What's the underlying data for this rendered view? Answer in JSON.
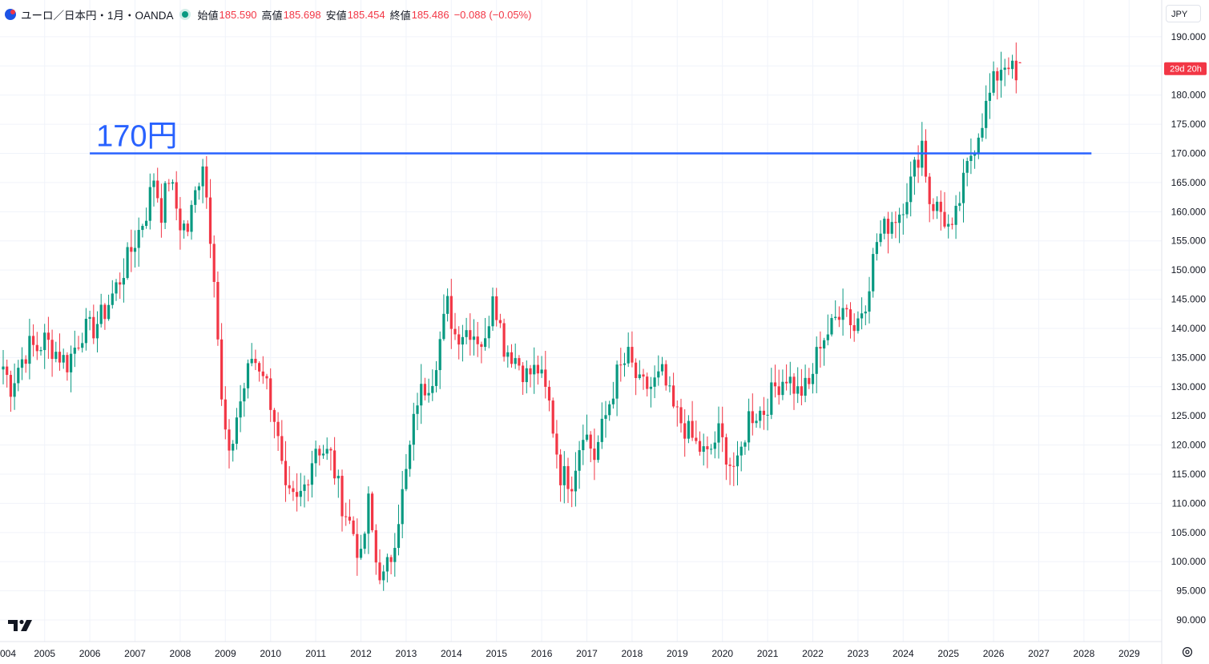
{
  "legend": {
    "symbol": "ユーロ／日本円・1月・OANDA",
    "open_label": "始値",
    "open": "185.590",
    "high_label": "高値",
    "high": "185.698",
    "low_label": "安値",
    "low": "185.454",
    "close_label": "終値",
    "close": "185.486",
    "change": "−0.088 (−0.05%)"
  },
  "currency_button": "JPY",
  "countdown_badge": "29d 20h",
  "colors": {
    "up": "#089981",
    "down": "#f23645",
    "hline": "#2962ff",
    "grid": "#f0f3fa",
    "text": "#131722"
  },
  "chart_data": {
    "type": "candlestick",
    "title": "ユーロ／日本円・1月・OANDA",
    "interval": "monthly",
    "xlabel": "",
    "ylabel": "",
    "ylim": [
      86.3,
      196.3
    ],
    "y_ticks": [
      "90.000",
      "95.000",
      "100.000",
      "105.000",
      "110.000",
      "115.000",
      "120.000",
      "125.000",
      "130.000",
      "135.000",
      "140.000",
      "145.000",
      "150.000",
      "155.000",
      "160.000",
      "165.000",
      "170.000",
      "175.000",
      "180.000",
      "185.000",
      "190.000"
    ],
    "x_ticks": [
      "004",
      "2005",
      "2006",
      "2007",
      "2008",
      "2009",
      "2010",
      "2011",
      "2012",
      "2013",
      "2014",
      "2015",
      "2016",
      "2017",
      "2018",
      "2019",
      "2020",
      "2021",
      "2022",
      "2023",
      "2024",
      "2025",
      "2026",
      "2027",
      "2028",
      "2029"
    ],
    "start": "2004-02",
    "anchors": [
      [
        "2004-02",
        133.5,
        false
      ],
      [
        "2004-04",
        130,
        false
      ],
      [
        "2004-06",
        133.5,
        false
      ],
      [
        "2004-09",
        137,
        true
      ],
      [
        "2004-11",
        136.5,
        false
      ],
      [
        "2005-01",
        138,
        false
      ],
      [
        "2005-04",
        136,
        false
      ],
      [
        "2005-07",
        134,
        false
      ],
      [
        "2005-11",
        139.5,
        true
      ],
      [
        "2006-02",
        140,
        false
      ],
      [
        "2006-05",
        143,
        true
      ],
      [
        "2006-09",
        148.5,
        true
      ],
      [
        "2007-01",
        155,
        true
      ],
      [
        "2007-04",
        160,
        true
      ],
      [
        "2007-06",
        166,
        true
      ],
      [
        "2007-08",
        160,
        false
      ],
      [
        "2007-10",
        166,
        true
      ],
      [
        "2008-01",
        158,
        false
      ],
      [
        "2008-03",
        157,
        false
      ],
      [
        "2008-07",
        169,
        true
      ],
      [
        "2008-10",
        150,
        false
      ],
      [
        "2008-12",
        127,
        false
      ],
      [
        "2009-02",
        117,
        false
      ],
      [
        "2009-04",
        125,
        true
      ],
      [
        "2009-08",
        135,
        true
      ],
      [
        "2009-11",
        133,
        false
      ],
      [
        "2010-02",
        125,
        false
      ],
      [
        "2010-05",
        111,
        false
      ],
      [
        "2010-08",
        110,
        false
      ],
      [
        "2010-10",
        113,
        true
      ],
      [
        "2011-01",
        120,
        true
      ],
      [
        "2011-05",
        118,
        false
      ],
      [
        "2011-08",
        110,
        false
      ],
      [
        "2011-11",
        105,
        false
      ],
      [
        "2012-01",
        100,
        false
      ],
      [
        "2012-03",
        110,
        true
      ],
      [
        "2012-05",
        100,
        false
      ],
      [
        "2012-07",
        97,
        false
      ],
      [
        "2012-09",
        101,
        true
      ],
      [
        "2013-01",
        115,
        true
      ],
      [
        "2013-04",
        128,
        true
      ],
      [
        "2013-08",
        132,
        true
      ],
      [
        "2013-12",
        144,
        true
      ],
      [
        "2014-02",
        139,
        false
      ],
      [
        "2014-06",
        140,
        true
      ],
      [
        "2014-10",
        137,
        false
      ],
      [
        "2014-12",
        147,
        true
      ],
      [
        "2015-03",
        137,
        false
      ],
      [
        "2015-06",
        135,
        false
      ],
      [
        "2015-09",
        132,
        false
      ],
      [
        "2015-12",
        133,
        true
      ],
      [
        "2016-03",
        127,
        false
      ],
      [
        "2016-06",
        115,
        false
      ],
      [
        "2016-09",
        114,
        false
      ],
      [
        "2016-12",
        123,
        true
      ],
      [
        "2017-03",
        118,
        false
      ],
      [
        "2017-06",
        125,
        true
      ],
      [
        "2017-09",
        132,
        true
      ],
      [
        "2017-12",
        135,
        true
      ],
      [
        "2018-03",
        130,
        false
      ],
      [
        "2018-06",
        130,
        true
      ],
      [
        "2018-09",
        132,
        true
      ],
      [
        "2018-12",
        126,
        false
      ],
      [
        "2019-03",
        123,
        false
      ],
      [
        "2019-06",
        120,
        false
      ],
      [
        "2019-09",
        118,
        false
      ],
      [
        "2019-12",
        122,
        true
      ],
      [
        "2020-03",
        117,
        false
      ],
      [
        "2020-05",
        116,
        false
      ],
      [
        "2020-08",
        125,
        true
      ],
      [
        "2020-12",
        126,
        true
      ],
      [
        "2021-03",
        130,
        true
      ],
      [
        "2021-06",
        132,
        true
      ],
      [
        "2021-09",
        129,
        false
      ],
      [
        "2021-12",
        130,
        true
      ],
      [
        "2022-03",
        138,
        true
      ],
      [
        "2022-06",
        140,
        true
      ],
      [
        "2022-09",
        145,
        true
      ],
      [
        "2022-12",
        140,
        false
      ],
      [
        "2023-03",
        145,
        true
      ],
      [
        "2023-06",
        155,
        true
      ],
      [
        "2023-09",
        158,
        true
      ],
      [
        "2023-12",
        160,
        true
      ],
      [
        "2024-03",
        165,
        true
      ],
      [
        "2024-06",
        172,
        true
      ],
      [
        "2024-08",
        162,
        false
      ],
      [
        "2024-11",
        160,
        false
      ],
      [
        "2025-02",
        156,
        false
      ],
      [
        "2025-04",
        162,
        true
      ],
      [
        "2025-07",
        170,
        true
      ],
      [
        "2025-10",
        176,
        true
      ],
      [
        "2026-01",
        182,
        true
      ],
      [
        "2026-03",
        185,
        true
      ],
      [
        "2026-05",
        186,
        true
      ],
      [
        "2026-07",
        182,
        false
      ],
      [
        "2026-08",
        185.486,
        true
      ]
    ],
    "last": {
      "date": "2026-08",
      "open": 185.59,
      "high": 185.698,
      "low": 185.454,
      "close": 185.486
    },
    "horizontal_lines": [
      {
        "y": 170,
        "label": "170円",
        "from": "2006-01",
        "to": "2028-03"
      }
    ],
    "grid": true
  }
}
